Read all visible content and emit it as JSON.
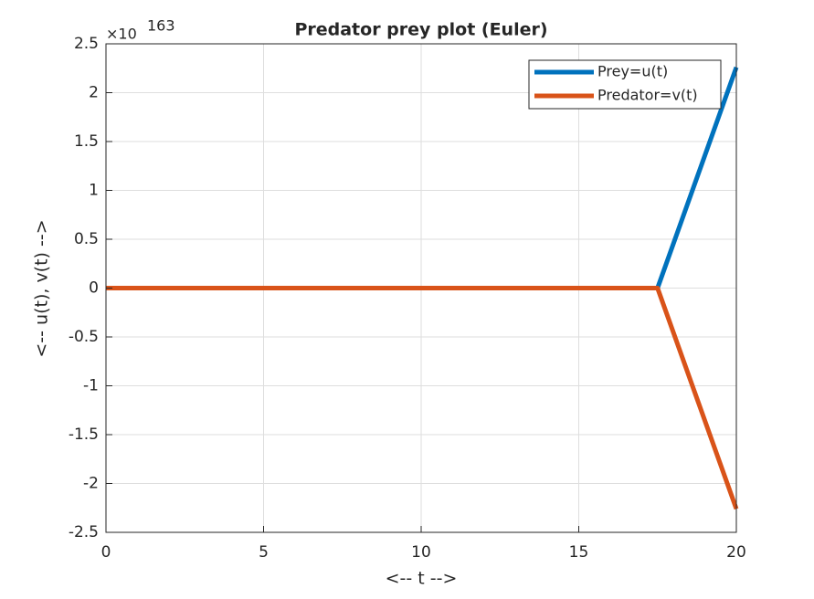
{
  "chart_data": {
    "type": "line",
    "title": "Predator prey plot (Euler)",
    "x_label": "<-- t -->",
    "y_label": "<-- u(t), v(t) -->",
    "y_multiplier": {
      "base": "×10",
      "exponent": "163"
    },
    "x": [
      0,
      17.5,
      20
    ],
    "series": [
      {
        "name": "Prey=u(t)",
        "color": "#0072bd",
        "values": [
          0,
          0,
          2.26
        ]
      },
      {
        "name": "Predator=v(t)",
        "color": "#d95319",
        "values": [
          0,
          0,
          -2.26
        ]
      }
    ],
    "xlim": [
      0,
      20
    ],
    "xticks": [
      0,
      5,
      10,
      15,
      20
    ],
    "ylim": [
      -2.5,
      2.5
    ],
    "yticks": [
      -2.5,
      -2,
      -1.5,
      -1,
      -0.5,
      0,
      0.5,
      1,
      1.5,
      2,
      2.5
    ],
    "grid": true,
    "legend": "northeast"
  }
}
